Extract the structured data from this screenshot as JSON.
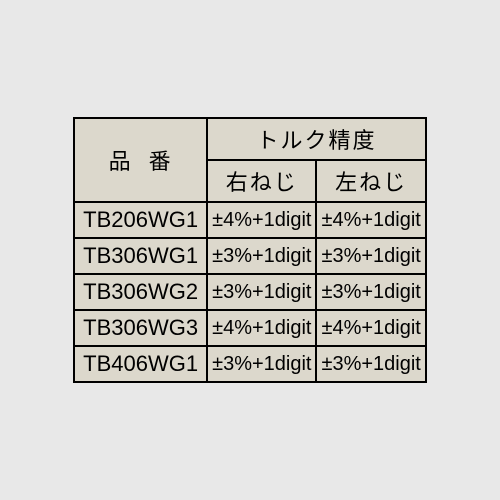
{
  "table": {
    "headers": {
      "part_number": "品番",
      "torque_accuracy": "トルク精度",
      "right_thread": "右ねじ",
      "left_thread": "左ねじ"
    },
    "rows": [
      {
        "pn": "TB206WG1",
        "right": "±4%+1digit",
        "left": "±4%+1digit"
      },
      {
        "pn": "TB306WG1",
        "right": "±3%+1digit",
        "left": "±3%+1digit"
      },
      {
        "pn": "TB306WG2",
        "right": "±3%+1digit",
        "left": "±3%+1digit"
      },
      {
        "pn": "TB306WG3",
        "right": "±4%+1digit",
        "left": "±4%+1digit"
      },
      {
        "pn": "TB406WG1",
        "right": "±3%+1digit",
        "left": "±3%+1digit"
      }
    ],
    "colors": {
      "background": "#dcd8cc",
      "border": "#000000",
      "text": "#000000"
    }
  }
}
